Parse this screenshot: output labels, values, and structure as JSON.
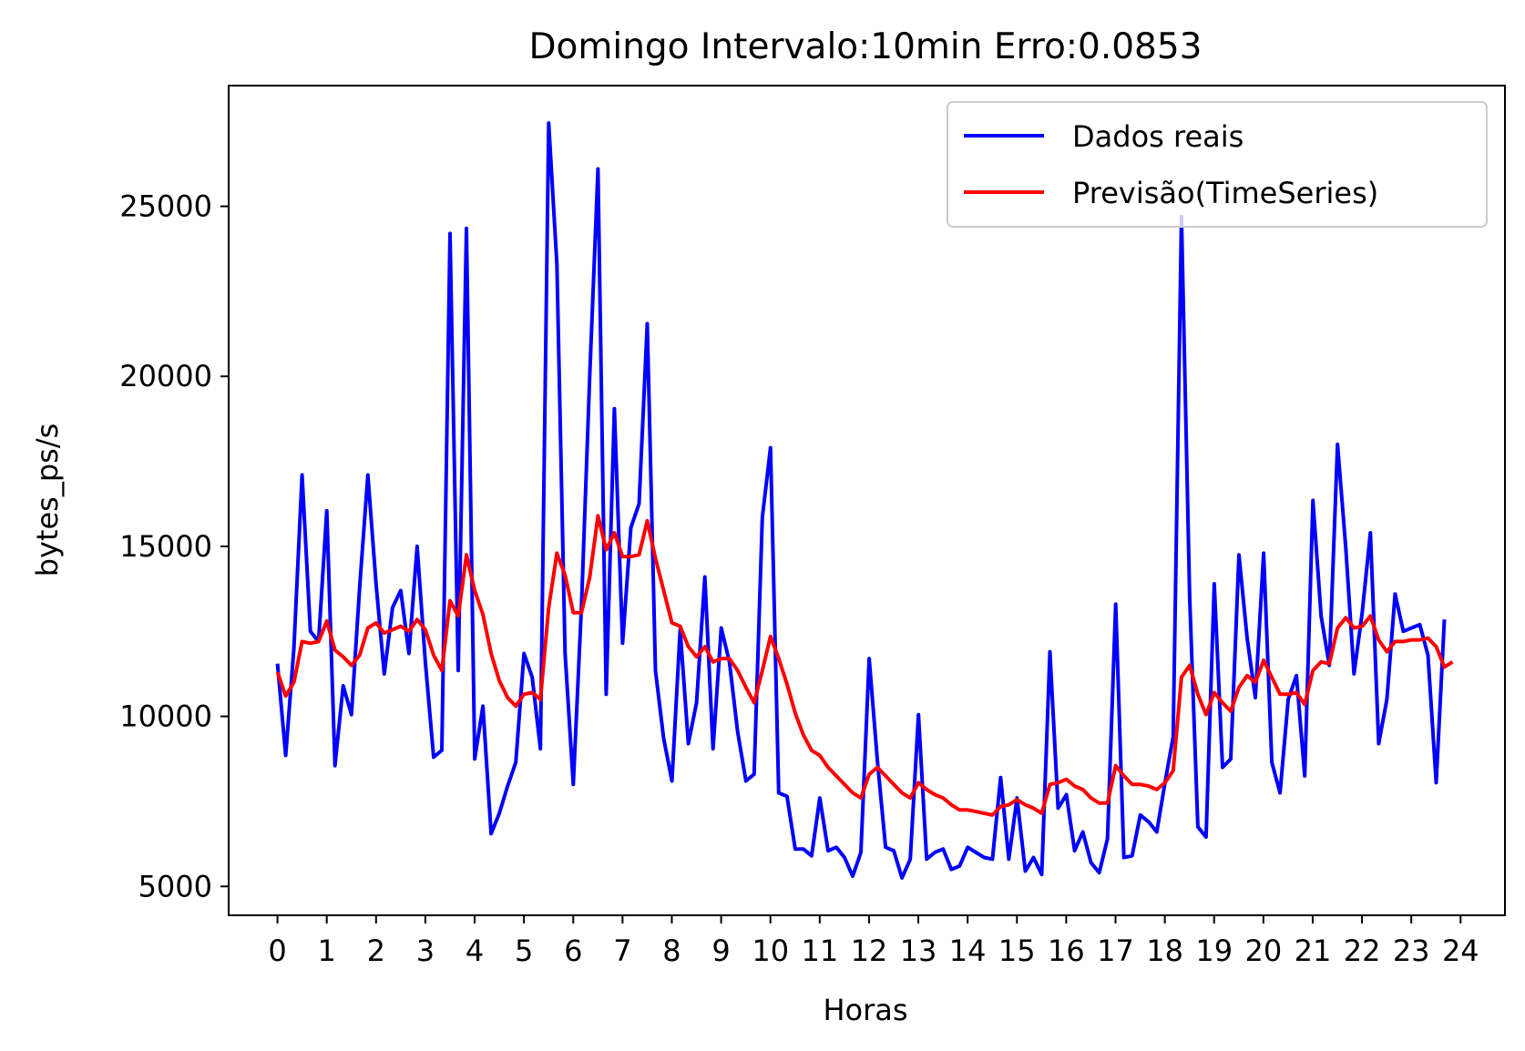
{
  "chart_data": {
    "type": "line",
    "title": "Domingo Intervalo:10min Erro:0.0853",
    "xlabel": "Horas",
    "ylabel": "bytes_ps/s",
    "xlim": [
      -0.99,
      24.9
    ],
    "ylim": [
      4150,
      28550
    ],
    "xticks": [
      "0",
      "1",
      "2",
      "3",
      "4",
      "5",
      "6",
      "7",
      "8",
      "9",
      "10",
      "11",
      "12",
      "13",
      "14",
      "15",
      "16",
      "17",
      "18",
      "19",
      "20",
      "21",
      "22",
      "23",
      "24"
    ],
    "yticks": [
      5000,
      10000,
      15000,
      20000,
      25000
    ],
    "grid": false,
    "legend_position": "upper right",
    "x_step_hours": 0.1667,
    "series": [
      {
        "name": "Dados reais",
        "color": "#0000ff",
        "values": [
          11550,
          8850,
          12000,
          17100,
          12500,
          12200,
          16050,
          8550,
          10900,
          10050,
          13800,
          17100,
          13900,
          11250,
          13200,
          13700,
          11850,
          15000,
          11600,
          8800,
          9000,
          24200,
          11350,
          24350,
          8750,
          10300,
          6550,
          7150,
          7950,
          8650,
          11850,
          11150,
          9050,
          27450,
          23300,
          11850,
          8000,
          13250,
          20050,
          26100,
          10650,
          19050,
          12150,
          15550,
          16250,
          21550,
          11350,
          9350,
          8100,
          12550,
          9200,
          10400,
          14100,
          9050,
          12600,
          11600,
          9550,
          8100,
          8300,
          15850,
          17900,
          7750,
          7650,
          6100,
          6100,
          5900,
          7600,
          6050,
          6150,
          5850,
          5300,
          6000,
          11700,
          8700,
          6150,
          6050,
          5250,
          5800,
          10050,
          5800,
          6000,
          6100,
          5500,
          5600,
          6150,
          6000,
          5850,
          5800,
          8200,
          5800,
          7600,
          5450,
          5850,
          5350,
          11900,
          7300,
          7700,
          6050,
          6600,
          5700,
          5400,
          6400,
          13300,
          5850,
          5900,
          7100,
          6900,
          6600,
          8050,
          9400,
          24700,
          13500,
          6750,
          6450,
          13900,
          8500,
          8750,
          14750,
          12300,
          10550,
          14800,
          8650,
          7750,
          10500,
          11200,
          8250,
          16350,
          12950,
          11500,
          18000,
          14950,
          11250,
          13050,
          15400,
          9200,
          10500,
          13600,
          12500,
          12600,
          12700,
          11800,
          8050,
          12850
        ]
      },
      {
        "name": "Previsão(TimeSeries)",
        "color": "#ff0000",
        "values": [
          11300,
          10600,
          11000,
          12200,
          12150,
          12200,
          12800,
          11950,
          11750,
          11500,
          11800,
          12600,
          12750,
          12450,
          12550,
          12650,
          12500,
          12850,
          12550,
          11800,
          11350,
          13400,
          12950,
          14750,
          13700,
          13000,
          11850,
          11050,
          10550,
          10300,
          10650,
          10700,
          10500,
          13200,
          14800,
          14150,
          13050,
          13050,
          14100,
          15900,
          14900,
          15400,
          14700,
          14700,
          14750,
          15750,
          14650,
          13700,
          12750,
          12650,
          12050,
          11750,
          12050,
          11600,
          11700,
          11700,
          11350,
          10850,
          10400,
          11350,
          12350,
          11700,
          10950,
          10100,
          9450,
          9000,
          8850,
          8500,
          8250,
          8000,
          7750,
          7600,
          8300,
          8500,
          8250,
          8000,
          7750,
          7600,
          8050,
          7850,
          7700,
          7600,
          7400,
          7250,
          7250,
          7200,
          7150,
          7100,
          7350,
          7400,
          7550,
          7400,
          7300,
          7150,
          8000,
          8050,
          8150,
          7950,
          7850,
          7600,
          7450,
          7450,
          8550,
          8250,
          8000,
          8000,
          7950,
          7850,
          8050,
          8400,
          11150,
          11500,
          10650,
          10050,
          10700,
          10400,
          10150,
          10850,
          11200,
          11000,
          11650,
          11150,
          10650,
          10650,
          10700,
          10350,
          11350,
          11600,
          11550,
          12600,
          12900,
          12600,
          12650,
          12950,
          12250,
          11900,
          12200,
          12200,
          12250,
          12250,
          12300,
          12050,
          11450,
          11600
        ]
      }
    ]
  }
}
